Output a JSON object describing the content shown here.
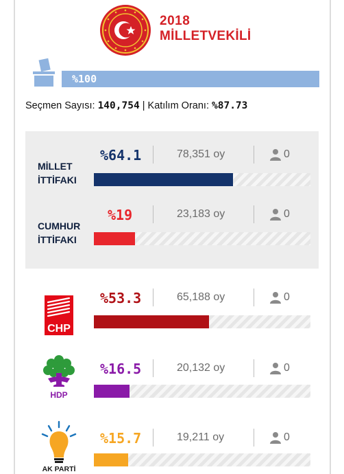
{
  "header": {
    "year": "2018",
    "title": "MİLLETVEKİLİ",
    "seal_text_top": "TÜRKİYE BÜYÜK",
    "seal_text_bottom": "MİLLET MECLİSİ"
  },
  "ballot": {
    "opened_label": "%100",
    "opened_value": 100,
    "icon": "ballot-box-icon"
  },
  "stats": {
    "voters_label": "Seçmen Sayısı:",
    "voters_value": "140,754",
    "separator": "|",
    "turnout_label": "Katılım Oranı:",
    "turnout_value": "%87.73"
  },
  "alliances": [
    {
      "label_line1": "MİLLET",
      "label_line2": "İTTİFAKI",
      "percent": "%64.1",
      "percent_value": 64.1,
      "votes": "78,351 oy",
      "seats": "0",
      "color": "#14336b",
      "seat_icon": "person-icon"
    },
    {
      "label_line1": "CUMHUR",
      "label_line2": "İTTİFAKI",
      "percent": "%19",
      "percent_value": 19,
      "votes": "23,183 oy",
      "seats": "0",
      "color": "#e8262c",
      "seat_icon": "person-icon"
    }
  ],
  "parties": [
    {
      "name": "CHP",
      "percent": "%53.3",
      "percent_value": 53.3,
      "votes": "65,188 oy",
      "seats": "0",
      "color": "#b01116",
      "logo_icon": "chp-logo-icon"
    },
    {
      "name": "HDP",
      "percent": "%16.5",
      "percent_value": 16.5,
      "votes": "20,132 oy",
      "seats": "0",
      "color": "#8a1aa8",
      "logo_icon": "hdp-logo-icon"
    },
    {
      "name": "AK PARTİ",
      "percent": "%15.7",
      "percent_value": 15.7,
      "votes": "19,211 oy",
      "seats": "0",
      "color": "#f6a623",
      "logo_icon": "akparti-logo-icon"
    }
  ]
}
